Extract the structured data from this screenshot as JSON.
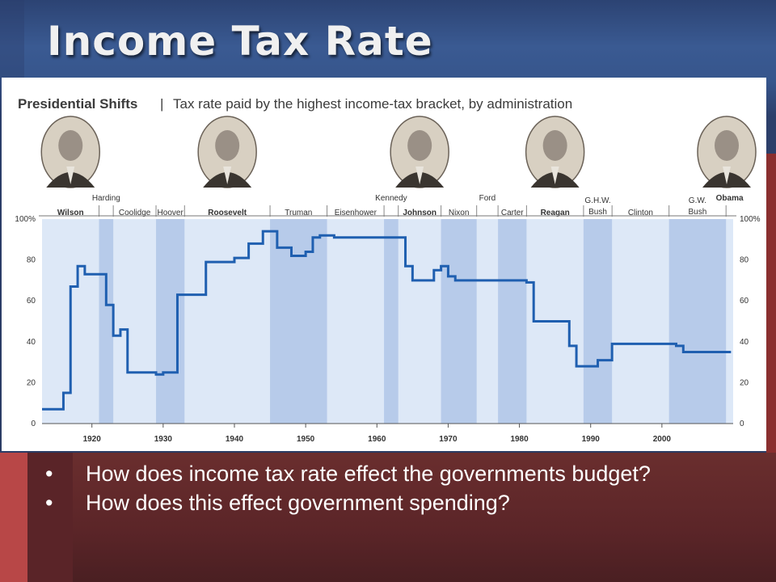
{
  "slide": {
    "title": "Income Tax Rate",
    "bullets": [
      "How does income tax rate effect the governments budget?",
      "How does this effect government spending?"
    ],
    "bullet_char": "•"
  },
  "colors": {
    "line": "#1f5fb0",
    "band_light": "#dde8f7",
    "band_dark": "#b7cbea",
    "background_top": "#2c4373",
    "background_bottom": "#5b2528"
  },
  "chart_data": {
    "type": "line",
    "title": "Presidential Shifts",
    "subtitle": "Tax rate paid by the highest income-tax bracket, by administration",
    "xlabel": "",
    "ylabel": "",
    "xlim": [
      1913,
      2010
    ],
    "ylim": [
      0,
      100
    ],
    "x_ticks": [
      1920,
      1930,
      1940,
      1950,
      1960,
      1970,
      1980,
      1990,
      2000
    ],
    "y_ticks": [
      0,
      20,
      40,
      60,
      80,
      100
    ],
    "y_tick_labels": [
      "0",
      "20",
      "40",
      "60",
      "80",
      "100%"
    ],
    "grid": false,
    "step": true,
    "series": [
      {
        "points": [
          [
            1913,
            7
          ],
          [
            1916,
            15
          ],
          [
            1917,
            67
          ],
          [
            1918,
            77
          ],
          [
            1919,
            73
          ],
          [
            1922,
            58
          ],
          [
            1923,
            43
          ],
          [
            1924,
            46
          ],
          [
            1925,
            25
          ],
          [
            1929,
            24
          ],
          [
            1930,
            25
          ],
          [
            1932,
            63
          ],
          [
            1936,
            79
          ],
          [
            1940,
            81
          ],
          [
            1942,
            88
          ],
          [
            1944,
            94
          ],
          [
            1946,
            86
          ],
          [
            1948,
            82
          ],
          [
            1950,
            84
          ],
          [
            1951,
            91
          ],
          [
            1952,
            92
          ],
          [
            1954,
            91
          ],
          [
            1964,
            77
          ],
          [
            1965,
            70
          ],
          [
            1968,
            75
          ],
          [
            1969,
            77
          ],
          [
            1970,
            72
          ],
          [
            1971,
            70
          ],
          [
            1981,
            69
          ],
          [
            1982,
            50
          ],
          [
            1987,
            38
          ],
          [
            1988,
            28
          ],
          [
            1991,
            31
          ],
          [
            1993,
            39
          ],
          [
            2001,
            39
          ],
          [
            2002,
            38
          ],
          [
            2003,
            35
          ],
          [
            2009,
            35
          ]
        ]
      }
    ],
    "administrations": [
      {
        "name": "Wilson",
        "start": 1913,
        "end": 1921,
        "bold": true
      },
      {
        "name": "Harding",
        "start": 1921,
        "end": 1923,
        "bold": false
      },
      {
        "name": "Coolidge",
        "start": 1923,
        "end": 1929,
        "bold": false
      },
      {
        "name": "Hoover",
        "start": 1929,
        "end": 1933,
        "bold": false
      },
      {
        "name": "Roosevelt",
        "start": 1933,
        "end": 1945,
        "bold": true
      },
      {
        "name": "Truman",
        "start": 1945,
        "end": 1953,
        "bold": false
      },
      {
        "name": "Eisenhower",
        "start": 1953,
        "end": 1961,
        "bold": false
      },
      {
        "name": "Kennedy",
        "start": 1961,
        "end": 1963,
        "bold": false
      },
      {
        "name": "Johnson",
        "start": 1963,
        "end": 1969,
        "bold": true
      },
      {
        "name": "Nixon",
        "start": 1969,
        "end": 1974,
        "bold": false
      },
      {
        "name": "Ford",
        "start": 1974,
        "end": 1977,
        "bold": false
      },
      {
        "name": "Carter",
        "start": 1977,
        "end": 1981,
        "bold": false
      },
      {
        "name": "Reagan",
        "start": 1981,
        "end": 1989,
        "bold": true
      },
      {
        "name": "G.H.W. Bush",
        "start": 1989,
        "end": 1993,
        "bold": false
      },
      {
        "name": "Clinton",
        "start": 1993,
        "end": 2001,
        "bold": false
      },
      {
        "name": "G.W. Bush",
        "start": 2001,
        "end": 2009,
        "bold": false
      },
      {
        "name": "Obama",
        "start": 2009,
        "end": 2010,
        "bold": true
      }
    ],
    "dark_bands": [
      [
        1921,
        1923
      ],
      [
        1929,
        1933
      ],
      [
        1945,
        1953
      ],
      [
        1961,
        1963
      ],
      [
        1969,
        1974
      ],
      [
        1977,
        1981
      ],
      [
        1989,
        1993
      ],
      [
        2001,
        2009
      ]
    ],
    "portraits": [
      "Wilson",
      "Roosevelt",
      "Johnson",
      "Reagan",
      "Obama"
    ]
  }
}
